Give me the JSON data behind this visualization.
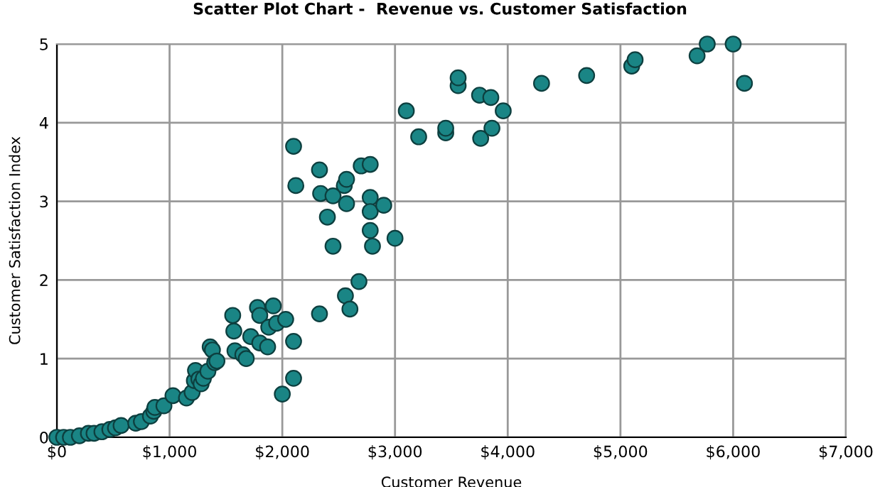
{
  "chart_data": {
    "type": "scatter",
    "title": "Scatter Plot Chart -  Revenue vs. Customer Satisfaction",
    "xlabel": "Customer Revenue",
    "ylabel": "Customer Satisfaction Index",
    "x": [
      0,
      60,
      120,
      200,
      280,
      330,
      400,
      470,
      520,
      570,
      700,
      750,
      830,
      860,
      870,
      950,
      1030,
      1150,
      1200,
      1220,
      1230,
      1260,
      1280,
      1300,
      1340,
      1360,
      1380,
      1400,
      1420,
      1560,
      1570,
      1580,
      1650,
      1680,
      1720,
      1780,
      1800,
      1800,
      1870,
      1880,
      1920,
      1950,
      2000,
      2030,
      2100,
      2100,
      2100,
      2120,
      2330,
      2330,
      2340,
      2400,
      2450,
      2450,
      2550,
      2570,
      2570,
      2560,
      2600,
      2680,
      2700,
      2780,
      2780,
      2780,
      2780,
      2800,
      2900,
      3000,
      3100,
      3210,
      3450,
      3450,
      3560,
      3560,
      3750,
      3760,
      3850,
      3860,
      3960,
      4300,
      4700,
      5100,
      5130,
      5680,
      5770,
      6000,
      6100
    ],
    "values": [
      0,
      0,
      0,
      0.02,
      0.05,
      0.05,
      0.07,
      0.1,
      0.12,
      0.15,
      0.18,
      0.2,
      0.27,
      0.33,
      0.38,
      0.4,
      0.53,
      0.5,
      0.57,
      0.72,
      0.85,
      0.74,
      0.68,
      0.75,
      0.84,
      1.15,
      1.11,
      0.95,
      0.97,
      1.55,
      1.35,
      1.1,
      1.05,
      1.0,
      1.28,
      1.65,
      1.55,
      1.2,
      1.15,
      1.4,
      1.67,
      1.45,
      0.55,
      1.5,
      1.22,
      0.75,
      3.7,
      3.2,
      1.57,
      3.4,
      3.1,
      2.8,
      2.43,
      3.07,
      3.2,
      3.28,
      2.97,
      1.8,
      1.63,
      1.98,
      3.45,
      3.47,
      3.05,
      2.87,
      2.63,
      2.43,
      2.95,
      2.53,
      4.15,
      3.82,
      3.87,
      3.93,
      4.47,
      4.57,
      4.35,
      3.8,
      4.32,
      3.93,
      4.15,
      4.5,
      4.6,
      4.72,
      4.8,
      4.85,
      5.0,
      5.0,
      4.5
    ],
    "color": "#1a8585",
    "marker": "circle",
    "grid": true,
    "xlim": [
      0,
      7000
    ],
    "xticks": [
      {
        "value": 0,
        "label": "$0"
      },
      {
        "value": 1000,
        "label": "$1,000"
      },
      {
        "value": 2000,
        "label": "$2,000"
      },
      {
        "value": 3000,
        "label": "$3,000"
      },
      {
        "value": 4000,
        "label": "$4,000"
      },
      {
        "value": 5000,
        "label": "$5,000"
      },
      {
        "value": 6000,
        "label": "$6,000"
      },
      {
        "value": 7000,
        "label": "$7,000"
      }
    ],
    "ylim": [
      0,
      5
    ],
    "yticks": [
      0,
      1,
      2,
      3,
      4,
      5
    ]
  }
}
